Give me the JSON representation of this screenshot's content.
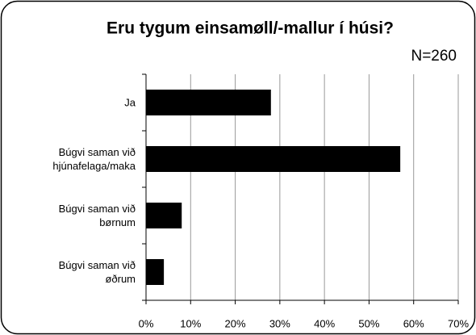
{
  "chart_data": {
    "type": "barh",
    "title": "Eru tygum einsamøll/-mallur í húsi?",
    "subtitle": "N=260",
    "categories": [
      "Ja",
      "Búgvi saman við\nhjúnafelaga/maka",
      "Búgvi saman við\nbørnum",
      "Búgvi saman við\nøðrum"
    ],
    "values": [
      28,
      57,
      8,
      4
    ],
    "color": "#000000",
    "xlim": [
      0,
      70
    ],
    "xticks": [
      {
        "value": 0,
        "label": "0%"
      },
      {
        "value": 10,
        "label": "10%"
      },
      {
        "value": 20,
        "label": "20%"
      },
      {
        "value": 30,
        "label": "30%"
      },
      {
        "value": 40,
        "label": "40%"
      },
      {
        "value": 50,
        "label": "50%"
      },
      {
        "value": 60,
        "label": "60%"
      },
      {
        "value": 70,
        "label": "70%"
      }
    ],
    "grid": true
  }
}
